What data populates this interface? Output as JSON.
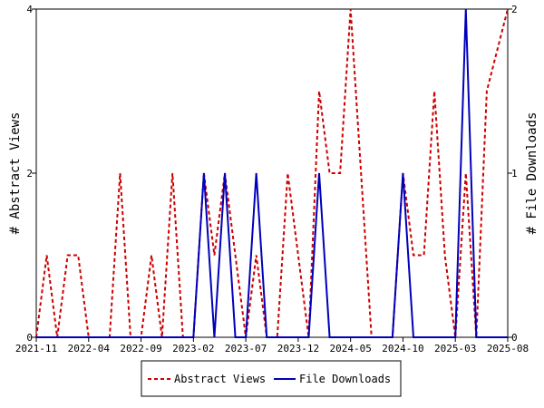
{
  "chart_data": {
    "type": "line",
    "title": "",
    "xlabel": "",
    "ylabel_left": "# Abstract Views",
    "ylabel_right": "# File Downloads",
    "x_tick_labels": [
      "2021-11",
      "2022-04",
      "2022-09",
      "2023-02",
      "2023-07",
      "2023-12",
      "2024-05",
      "2024-10",
      "2025-03",
      "2025-08"
    ],
    "y_left_ticks": [
      "0",
      "2",
      "4"
    ],
    "y_right_ticks": [
      "0",
      "1",
      "2"
    ],
    "ylim_left": [
      0,
      4
    ],
    "ylim_right": [
      0,
      2
    ],
    "grid": false,
    "legend_position": "bottom-center",
    "x": [
      "2021-11",
      "2021-12",
      "2022-01",
      "2022-02",
      "2022-03",
      "2022-04",
      "2022-05",
      "2022-06",
      "2022-07",
      "2022-08",
      "2022-09",
      "2022-10",
      "2022-11",
      "2022-12",
      "2023-01",
      "2023-02",
      "2023-03",
      "2023-04",
      "2023-05",
      "2023-06",
      "2023-07",
      "2023-08",
      "2023-09",
      "2023-10",
      "2023-11",
      "2023-12",
      "2024-01",
      "2024-02",
      "2024-03",
      "2024-04",
      "2024-05",
      "2024-06",
      "2024-07",
      "2024-08",
      "2024-09",
      "2024-10",
      "2024-11",
      "2024-12",
      "2025-01",
      "2025-02",
      "2025-03",
      "2025-04",
      "2025-05",
      "2025-06",
      "2025-07",
      "2025-08"
    ],
    "series": [
      {
        "name": "Abstract Views",
        "axis": "left",
        "color": "#cc0000",
        "dash": true,
        "values": [
          0,
          1,
          0,
          1,
          1,
          0,
          0,
          0,
          2,
          0,
          0,
          1,
          0,
          2,
          0,
          0,
          2,
          1,
          2,
          1,
          0,
          1,
          0,
          0,
          2,
          1,
          0,
          3,
          2,
          2,
          4,
          2,
          0,
          0,
          0,
          2,
          1,
          1,
          3,
          1,
          0,
          2,
          0,
          3,
          3.5,
          4
        ]
      },
      {
        "name": "File Downloads",
        "axis": "right",
        "color": "#0000bb",
        "dash": false,
        "values": [
          0,
          0,
          0,
          0,
          0,
          0,
          0,
          0,
          0,
          0,
          0,
          0,
          0,
          0,
          0,
          0,
          1,
          0,
          1,
          0,
          0,
          1,
          0,
          0,
          0,
          0,
          0,
          1,
          0,
          0,
          0,
          0,
          0,
          0,
          0,
          1,
          0,
          0,
          0,
          0,
          0,
          2,
          0,
          0,
          0,
          0
        ]
      }
    ]
  }
}
